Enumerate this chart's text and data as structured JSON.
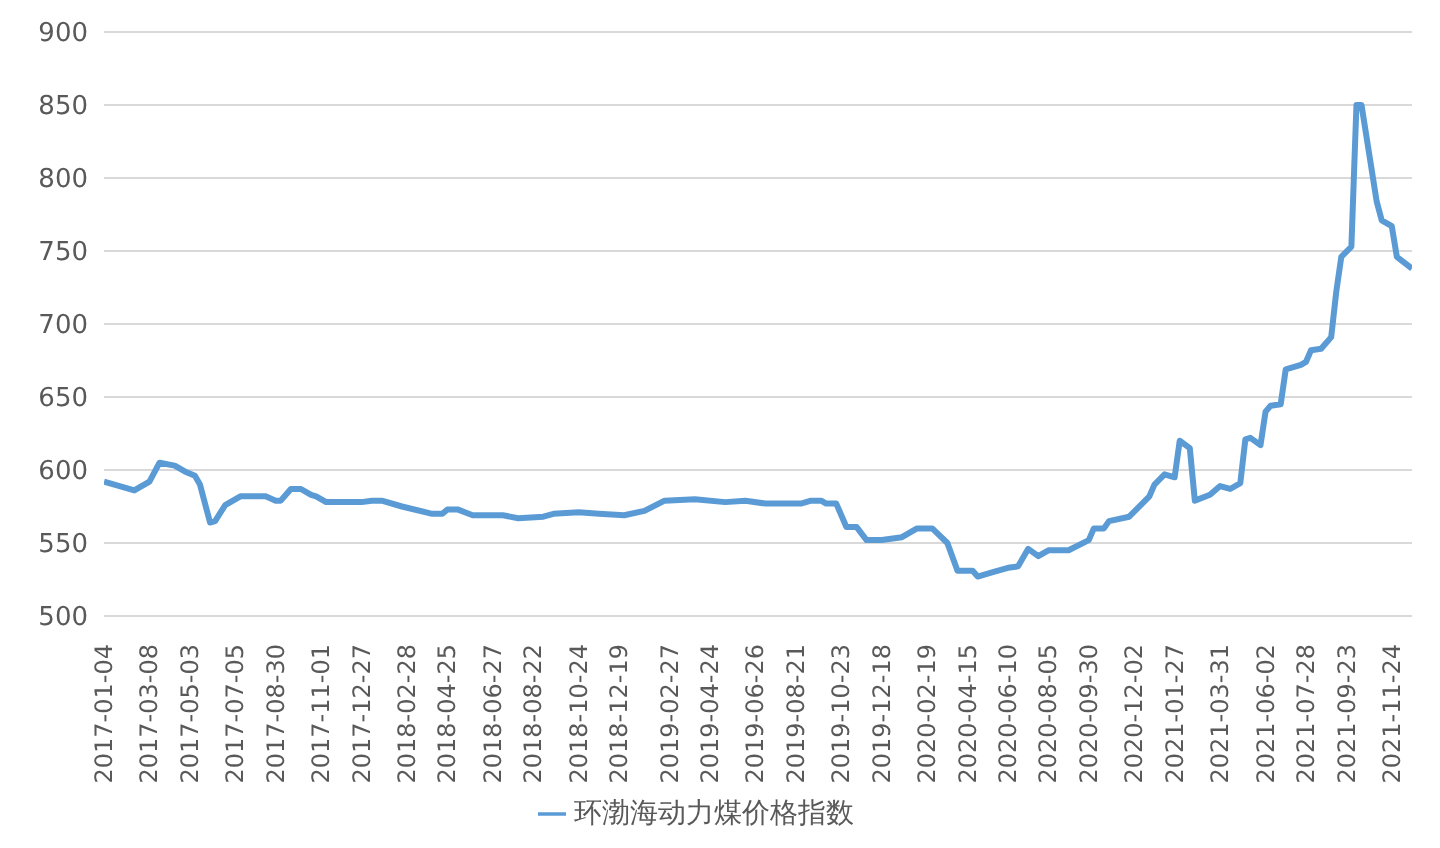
{
  "chart_data": {
    "type": "line",
    "x": [
      "2017-01-04",
      "2017-02-15",
      "2017-03-08",
      "2017-03-22",
      "2017-04-12",
      "2017-04-26",
      "2017-05-10",
      "2017-05-17",
      "2017-05-31",
      "2017-06-07",
      "2017-06-21",
      "2017-07-12",
      "2017-08-16",
      "2017-08-30",
      "2017-09-06",
      "2017-09-20",
      "2017-10-04",
      "2017-10-18",
      "2017-10-25",
      "2017-11-08",
      "2017-12-27",
      "2018-01-10",
      "2018-01-24",
      "2018-02-21",
      "2018-04-04",
      "2018-04-18",
      "2018-04-25",
      "2018-05-09",
      "2018-05-30",
      "2018-07-11",
      "2018-08-01",
      "2018-09-05",
      "2018-09-19",
      "2018-10-24",
      "2018-11-21",
      "2018-12-26",
      "2019-01-23",
      "2019-02-20",
      "2019-04-03",
      "2019-05-15",
      "2019-06-12",
      "2019-07-10",
      "2019-08-28",
      "2019-09-11",
      "2019-09-25",
      "2019-10-02",
      "2019-10-16",
      "2019-10-30",
      "2019-11-13",
      "2019-11-27",
      "2019-12-18",
      "2020-01-15",
      "2020-02-05",
      "2020-02-26",
      "2020-03-18",
      "2020-04-01",
      "2020-04-22",
      "2020-04-29",
      "2020-05-20",
      "2020-06-10",
      "2020-06-24",
      "2020-07-08",
      "2020-07-22",
      "2020-08-05",
      "2020-09-02",
      "2020-09-30",
      "2020-10-07",
      "2020-10-21",
      "2020-10-28",
      "2020-11-25",
      "2020-12-23",
      "2020-12-30",
      "2021-01-13",
      "2021-01-27",
      "2021-02-03",
      "2021-02-17",
      "2021-02-24",
      "2021-03-17",
      "2021-03-31",
      "2021-04-14",
      "2021-04-28",
      "2021-05-05",
      "2021-05-12",
      "2021-05-26",
      "2021-06-02",
      "2021-06-09",
      "2021-06-23",
      "2021-06-30",
      "2021-07-21",
      "2021-07-28",
      "2021-08-04",
      "2021-08-18",
      "2021-09-01",
      "2021-09-08",
      "2021-09-15",
      "2021-09-29",
      "2021-10-06",
      "2021-10-13",
      "2021-11-03",
      "2021-11-10",
      "2021-11-24",
      "2021-12-01",
      "2021-12-22"
    ],
    "series": [
      {
        "name": "环渤海动力煤价格指数",
        "color": "#5b9bd5",
        "values": [
          592,
          586,
          592,
          605,
          603,
          599,
          596,
          590,
          564,
          565,
          576,
          582,
          582,
          579,
          579,
          587,
          587,
          583,
          582,
          578,
          578,
          579,
          579,
          575,
          570,
          570,
          573,
          573,
          569,
          569,
          567,
          568,
          570,
          571,
          570,
          569,
          572,
          579,
          580,
          578,
          579,
          577,
          577,
          579,
          579,
          577,
          577,
          561,
          561,
          552,
          552,
          554,
          560,
          560,
          550,
          531,
          531,
          527,
          530,
          533,
          534,
          546,
          541,
          545,
          545,
          552,
          560,
          560,
          565,
          568,
          582,
          590,
          597,
          595,
          620,
          615,
          579,
          583,
          589,
          587,
          591,
          621,
          622,
          617,
          640,
          644,
          645,
          669,
          672,
          674,
          682,
          683,
          691,
          722,
          746,
          753,
          850,
          850,
          784,
          771,
          767,
          746,
          738
        ]
      }
    ],
    "xlim": [
      "2017-01-04",
      "2021-12-22"
    ],
    "xticks": [
      "2017-01-04",
      "2017-03-08",
      "2017-05-03",
      "2017-07-05",
      "2017-08-30",
      "2017-11-01",
      "2017-12-27",
      "2018-02-28",
      "2018-04-25",
      "2018-06-27",
      "2018-08-22",
      "2018-10-24",
      "2018-12-19",
      "2019-02-27",
      "2019-04-24",
      "2019-06-26",
      "2019-08-21",
      "2019-10-23",
      "2019-12-18",
      "2020-02-19",
      "2020-04-15",
      "2020-06-10",
      "2020-08-05",
      "2020-09-30",
      "2020-12-02",
      "2021-01-27",
      "2021-03-31",
      "2021-06-02",
      "2021-07-28",
      "2021-09-23",
      "2021-11-24"
    ],
    "ylim": [
      500,
      900
    ],
    "yticks": [
      500,
      550,
      600,
      650,
      700,
      750,
      800,
      850,
      900
    ],
    "grid": "y",
    "legend": "bottom",
    "marker": "none",
    "line_style": "solid"
  }
}
